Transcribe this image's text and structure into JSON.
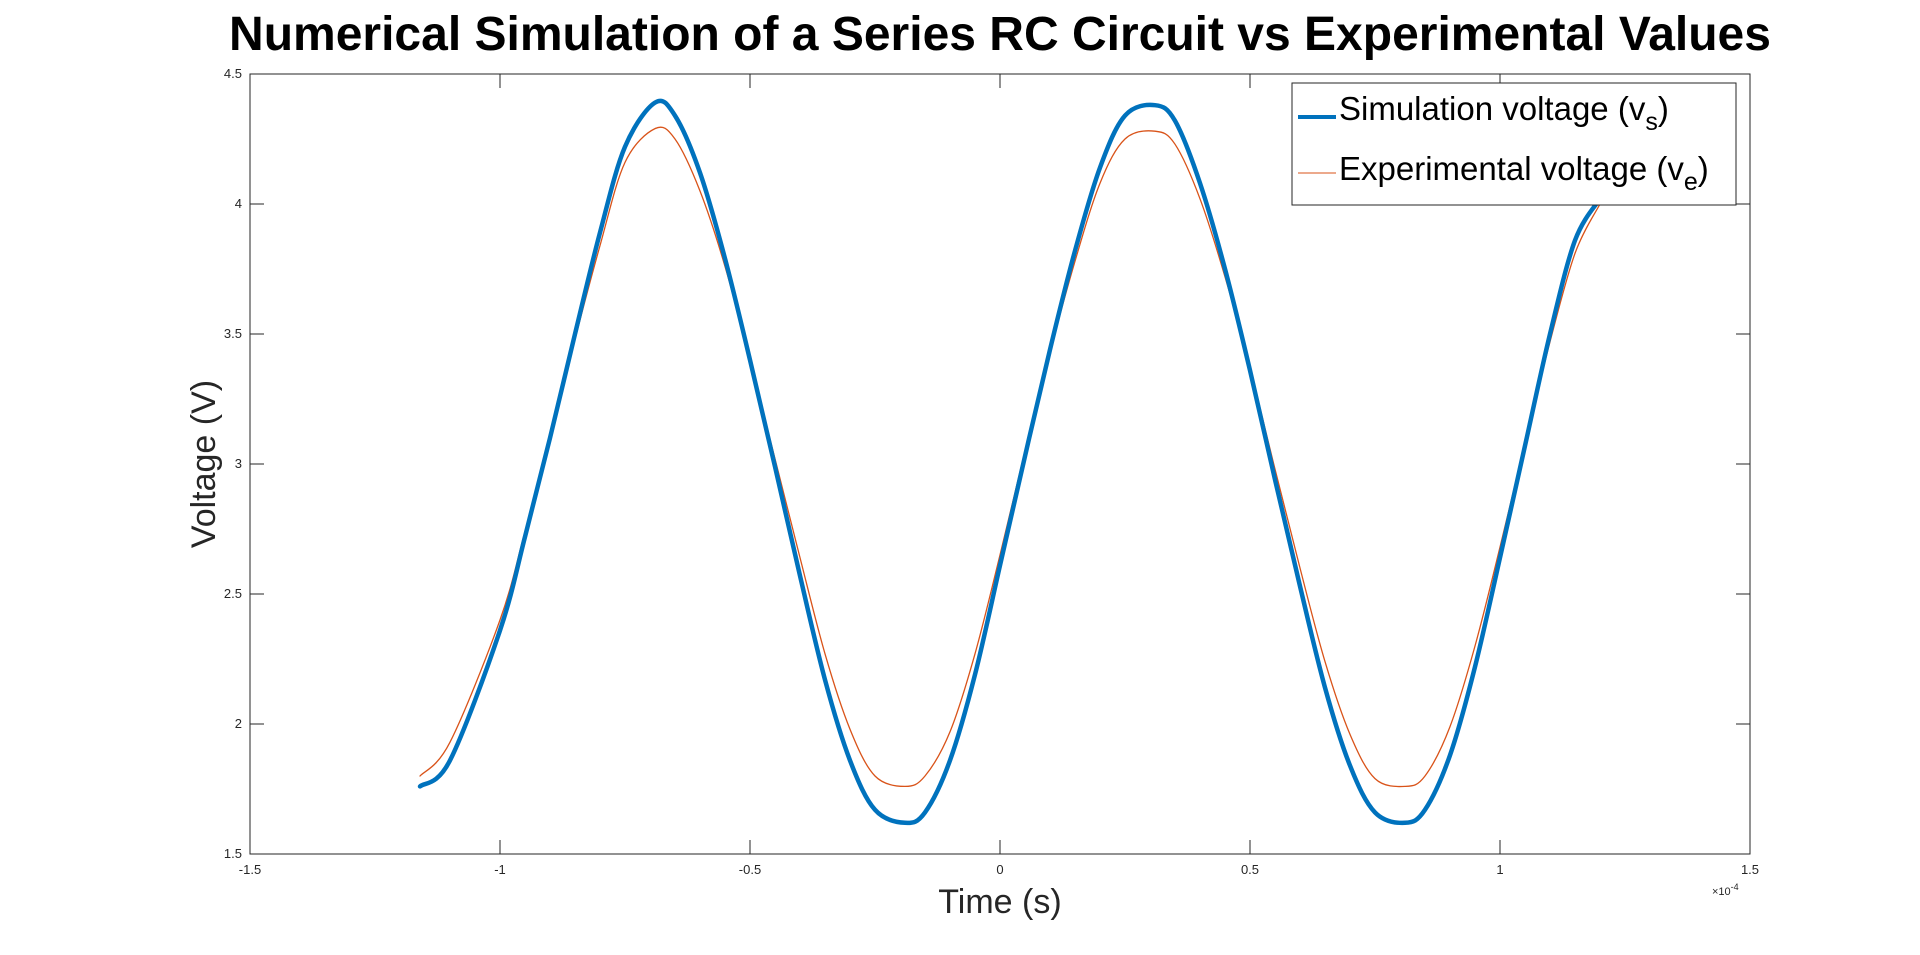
{
  "chart_data": {
    "type": "line",
    "title": "Numerical Simulation of a Series RC Circuit vs Experimental Values",
    "xlabel": "Time (s)",
    "ylabel": "Voltage (V)",
    "xlim": [
      -1.5,
      1.5
    ],
    "ylim": [
      1.5,
      4.5
    ],
    "x_exponent_label": "×10",
    "x_exponent_power": "-4",
    "x_ticks": [
      "-1.5",
      "-1",
      "-0.5",
      "0",
      "0.5",
      "1",
      "1.5"
    ],
    "y_ticks": [
      "1.5",
      "2",
      "2.5",
      "3",
      "3.5",
      "4",
      "4.5"
    ],
    "grid": false,
    "box": true,
    "legend_position": "top-right",
    "series": [
      {
        "name": "Simulation voltage (v",
        "name_subscript": "s",
        "name_suffix": ")",
        "color": "#0072BD",
        "width": "thick",
        "x": [
          -1.16,
          -1.1,
          -1.0,
          -0.95,
          -0.9,
          -0.85,
          -0.8,
          -0.75,
          -0.69,
          -0.65,
          -0.6,
          -0.55,
          -0.5,
          -0.45,
          -0.4,
          -0.35,
          -0.3,
          -0.25,
          -0.19,
          -0.15,
          -0.1,
          -0.05,
          0.0,
          0.05,
          0.1,
          0.15,
          0.2,
          0.25,
          0.31,
          0.35,
          0.4,
          0.45,
          0.5,
          0.55,
          0.6,
          0.65,
          0.7,
          0.75,
          0.81,
          0.85,
          0.9,
          0.95,
          1.0,
          1.05,
          1.1,
          1.15,
          1.2
        ],
        "y": [
          1.76,
          1.86,
          2.36,
          2.72,
          3.1,
          3.5,
          3.89,
          4.22,
          4.39,
          4.34,
          4.12,
          3.79,
          3.4,
          2.99,
          2.57,
          2.17,
          1.86,
          1.67,
          1.62,
          1.66,
          1.86,
          2.19,
          2.61,
          3.03,
          3.44,
          3.82,
          4.14,
          4.34,
          4.38,
          4.32,
          4.08,
          3.75,
          3.36,
          2.94,
          2.53,
          2.14,
          1.84,
          1.66,
          1.62,
          1.67,
          1.88,
          2.22,
          2.64,
          3.07,
          3.5,
          3.86,
          4.02
        ]
      },
      {
        "name": "Experimental voltage (v",
        "name_subscript": "e",
        "name_suffix": ")",
        "color": "#D95319",
        "width": "thin",
        "x": [
          -1.16,
          -1.1,
          -1.0,
          -0.95,
          -0.9,
          -0.85,
          -0.8,
          -0.75,
          -0.69,
          -0.65,
          -0.6,
          -0.55,
          -0.5,
          -0.45,
          -0.4,
          -0.35,
          -0.3,
          -0.25,
          -0.19,
          -0.15,
          -0.1,
          -0.05,
          0.0,
          0.05,
          0.1,
          0.15,
          0.2,
          0.25,
          0.31,
          0.35,
          0.4,
          0.45,
          0.5,
          0.55,
          0.6,
          0.65,
          0.7,
          0.75,
          0.81,
          0.85,
          0.9,
          0.95,
          1.0,
          1.05,
          1.1,
          1.15,
          1.2
        ],
        "y": [
          1.8,
          1.93,
          2.4,
          2.74,
          3.1,
          3.48,
          3.84,
          4.16,
          4.29,
          4.25,
          4.05,
          3.76,
          3.4,
          3.02,
          2.64,
          2.27,
          1.98,
          1.8,
          1.76,
          1.8,
          1.97,
          2.27,
          2.65,
          3.05,
          3.43,
          3.78,
          4.08,
          4.25,
          4.28,
          4.23,
          4.02,
          3.72,
          3.37,
          2.98,
          2.6,
          2.24,
          1.96,
          1.79,
          1.76,
          1.8,
          1.99,
          2.3,
          2.68,
          3.08,
          3.47,
          3.81,
          4.0
        ]
      }
    ]
  }
}
